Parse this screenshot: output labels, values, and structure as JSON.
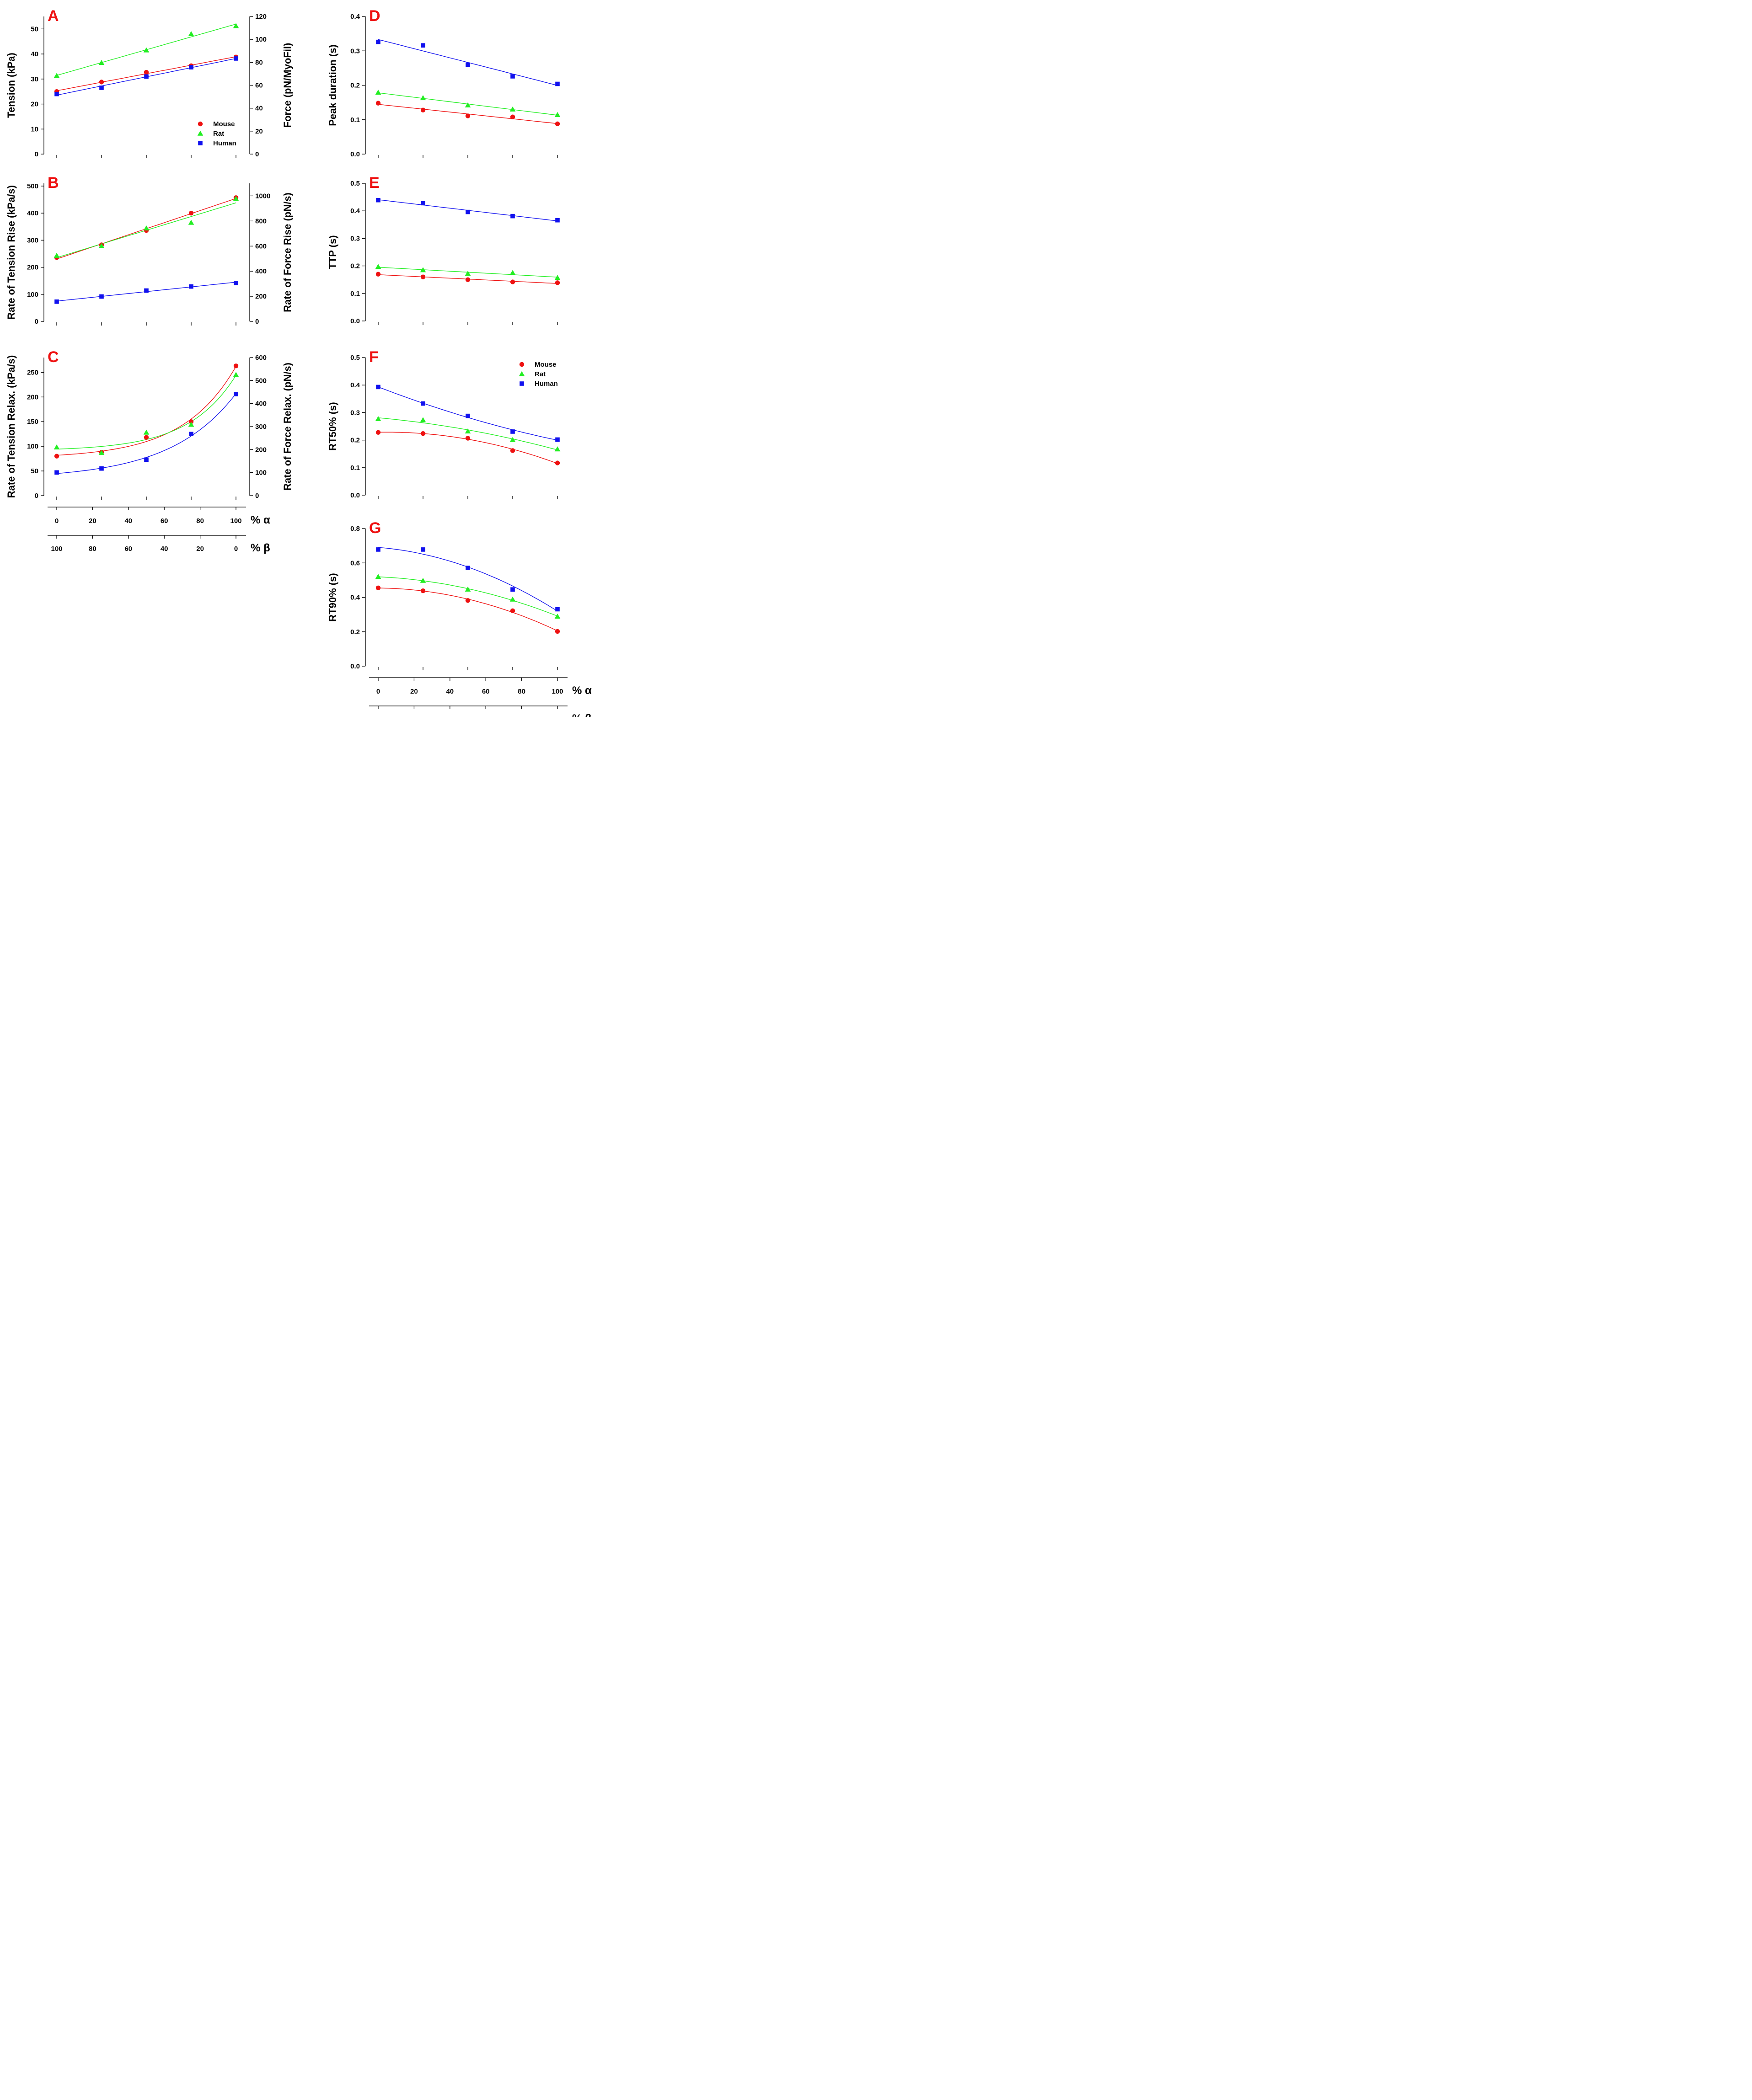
{
  "colors": {
    "Mouse": "#ee1111",
    "Rat": "#22ee22",
    "Human": "#1111ee",
    "panel_label": "#ee1111"
  },
  "x_axis": {
    "alpha_label": "% α",
    "beta_label": "% β",
    "alpha_ticks": [
      0,
      20,
      40,
      60,
      80,
      100
    ],
    "beta_ticks": [
      100,
      80,
      60,
      40,
      20,
      0
    ]
  },
  "chart_data": [
    {
      "id": "A",
      "type": "scatter",
      "fit": "linear",
      "ylabel": "Tension (kPa)",
      "ylim": [
        0,
        55
      ],
      "yticks": [
        0,
        10,
        20,
        30,
        40,
        50
      ],
      "ylabel_right": "Force (pN/MyoFil)",
      "ylim_right": [
        0,
        120
      ],
      "yticks_right": [
        0,
        20,
        40,
        60,
        80,
        100,
        120
      ],
      "x": [
        0,
        25,
        50,
        75,
        100
      ],
      "legend": [
        "Mouse",
        "Rat",
        "Human"
      ],
      "legend_position": "bottom-right",
      "series": [
        {
          "name": "Mouse",
          "marker": "circle",
          "values": [
            25.0,
            28.8,
            32.7,
            35.3,
            38.8
          ]
        },
        {
          "name": "Rat",
          "marker": "triangle",
          "values": [
            31.3,
            36.5,
            41.5,
            48.0,
            51.2
          ]
        },
        {
          "name": "Human",
          "marker": "square",
          "values": [
            24.0,
            26.5,
            31.0,
            34.7,
            38.2
          ]
        }
      ]
    },
    {
      "id": "B",
      "type": "scatter",
      "fit": "linear",
      "ylabel": "Rate of Tension Rise (kPa/s)",
      "ylim": [
        0,
        510
      ],
      "yticks": [
        0,
        100,
        200,
        300,
        400,
        500
      ],
      "ylabel_right": "Rate of Force Rise (pN/s)",
      "ylim_right": [
        0,
        1100
      ],
      "yticks_right": [
        0,
        200,
        400,
        600,
        800,
        1000
      ],
      "x": [
        0,
        25,
        50,
        75,
        100
      ],
      "series": [
        {
          "name": "Mouse",
          "marker": "circle",
          "values": [
            236,
            283,
            336,
            400,
            457
          ]
        },
        {
          "name": "Rat",
          "marker": "triangle",
          "values": [
            243,
            279,
            344,
            365,
            453
          ]
        },
        {
          "name": "Human",
          "marker": "square",
          "values": [
            73,
            92,
            114,
            129,
            142
          ]
        }
      ]
    },
    {
      "id": "C",
      "type": "scatter",
      "fit": "exponential",
      "ylabel": "Rate of Tension Relax. (kPa/s)",
      "ylim": [
        0,
        280
      ],
      "yticks": [
        0,
        50,
        100,
        150,
        200,
        250
      ],
      "ylabel_right": "Rate of Force Relax. (pN/s)",
      "ylim_right": [
        0,
        600
      ],
      "yticks_right": [
        0,
        100,
        200,
        300,
        400,
        500,
        600
      ],
      "x": [
        0,
        25,
        50,
        75,
        100
      ],
      "series": [
        {
          "name": "Mouse",
          "marker": "circle",
          "values": [
            80,
            88,
            118,
            150,
            263
          ]
        },
        {
          "name": "Rat",
          "marker": "triangle",
          "values": [
            98,
            87,
            128,
            144,
            245
          ]
        },
        {
          "name": "Human",
          "marker": "square",
          "values": [
            47,
            55,
            73,
            125,
            206
          ]
        }
      ]
    },
    {
      "id": "D",
      "type": "scatter",
      "fit": "linear",
      "ylabel": "Peak duration (s)",
      "ylim": [
        0,
        0.4
      ],
      "yticks": [
        0.0,
        0.1,
        0.2,
        0.3,
        0.4
      ],
      "x": [
        0,
        25,
        50,
        75,
        100
      ],
      "series": [
        {
          "name": "Mouse",
          "marker": "circle",
          "values": [
            0.148,
            0.128,
            0.111,
            0.108,
            0.088
          ]
        },
        {
          "name": "Rat",
          "marker": "triangle",
          "values": [
            0.179,
            0.163,
            0.142,
            0.13,
            0.114
          ]
        },
        {
          "name": "Human",
          "marker": "square",
          "values": [
            0.326,
            0.316,
            0.26,
            0.226,
            0.204
          ]
        }
      ]
    },
    {
      "id": "E",
      "type": "scatter",
      "fit": "linear",
      "ylabel": "TTP (s)",
      "ylim": [
        0,
        0.5
      ],
      "yticks": [
        0.0,
        0.1,
        0.2,
        0.3,
        0.4,
        0.5
      ],
      "x": [
        0,
        25,
        50,
        75,
        100
      ],
      "series": [
        {
          "name": "Mouse",
          "marker": "circle",
          "values": [
            0.17,
            0.16,
            0.15,
            0.142,
            0.139
          ]
        },
        {
          "name": "Rat",
          "marker": "triangle",
          "values": [
            0.197,
            0.185,
            0.172,
            0.175,
            0.157
          ]
        },
        {
          "name": "Human",
          "marker": "square",
          "values": [
            0.439,
            0.428,
            0.396,
            0.381,
            0.366
          ]
        }
      ]
    },
    {
      "id": "F",
      "type": "scatter",
      "fit": "quadratic",
      "ylabel": "RT50% (s)",
      "ylim": [
        0,
        0.5
      ],
      "yticks": [
        0.0,
        0.1,
        0.2,
        0.3,
        0.4,
        0.5
      ],
      "x": [
        0,
        25,
        50,
        75,
        100
      ],
      "legend": [
        "Mouse",
        "Rat",
        "Human"
      ],
      "legend_position": "top-right",
      "series": [
        {
          "name": "Mouse",
          "marker": "circle",
          "values": [
            0.228,
            0.224,
            0.207,
            0.162,
            0.117
          ]
        },
        {
          "name": "Rat",
          "marker": "triangle",
          "values": [
            0.277,
            0.273,
            0.232,
            0.201,
            0.167
          ]
        },
        {
          "name": "Human",
          "marker": "square",
          "values": [
            0.393,
            0.333,
            0.288,
            0.231,
            0.202
          ]
        }
      ]
    },
    {
      "id": "G",
      "type": "scatter",
      "fit": "quadratic",
      "ylabel": "RT90% (s)",
      "ylim": [
        0,
        0.8
      ],
      "yticks": [
        0.0,
        0.2,
        0.4,
        0.6,
        0.8
      ],
      "x": [
        0,
        25,
        50,
        75,
        100
      ],
      "series": [
        {
          "name": "Mouse",
          "marker": "circle",
          "values": [
            0.455,
            0.438,
            0.382,
            0.322,
            0.202
          ]
        },
        {
          "name": "Rat",
          "marker": "triangle",
          "values": [
            0.52,
            0.497,
            0.446,
            0.388,
            0.289
          ]
        },
        {
          "name": "Human",
          "marker": "square",
          "values": [
            0.678,
            0.678,
            0.571,
            0.446,
            0.331
          ]
        }
      ]
    }
  ]
}
